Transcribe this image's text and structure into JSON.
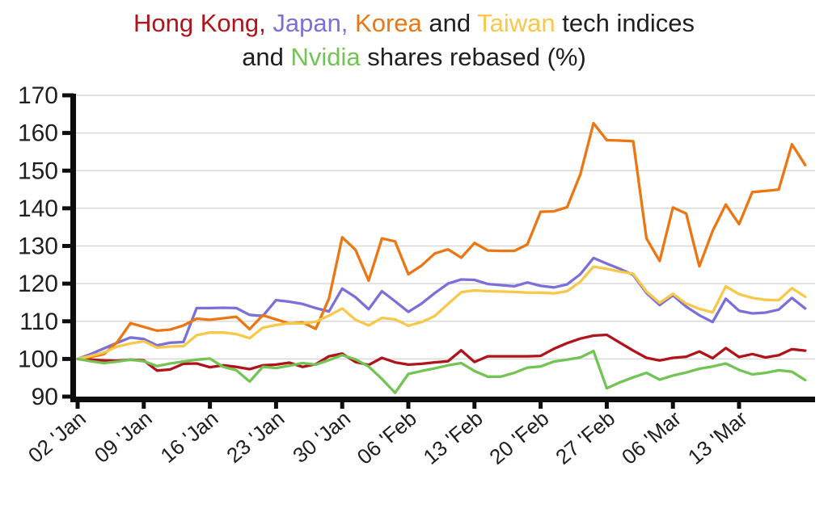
{
  "title": {
    "line1_segments": [
      {
        "text": "Hong Kong,",
        "color": "#b0131a"
      },
      {
        "text": " ",
        "color": "#1f1f1f"
      },
      {
        "text": "Japan,",
        "color": "#7b6fd8"
      },
      {
        "text": " ",
        "color": "#1f1f1f"
      },
      {
        "text": "Korea",
        "color": "#ec7612"
      },
      {
        "text": " and ",
        "color": "#1f1f1f"
      },
      {
        "text": "Taiwan",
        "color": "#f8c84b"
      },
      {
        "text": " tech indices",
        "color": "#1f1f1f"
      }
    ],
    "line2_segments": [
      {
        "text": "and ",
        "color": "#1f1f1f"
      },
      {
        "text": "Nvidia",
        "color": "#74c355"
      },
      {
        "text": " shares rebased (%)",
        "color": "#1f1f1f"
      }
    ]
  },
  "chart_data": {
    "type": "line",
    "title": "Hong Kong, Japan, Korea and Taiwan tech indices and Nvidia shares rebased (%)",
    "xlabel": "",
    "ylabel": "",
    "ylim": [
      90,
      170
    ],
    "y_ticks": [
      90,
      100,
      110,
      120,
      130,
      140,
      150,
      160,
      170
    ],
    "grid": "horizontal",
    "legend_position": "none (colors in title)",
    "x_tick_labels": [
      "02 'Jan",
      "09 'Jan",
      "16 'Jan",
      "23 'Jan",
      "30 'Jan",
      "06 'Feb",
      "13 'Feb",
      "20 'Feb",
      "27 'Feb",
      "06 'Mar",
      "13 'Mar"
    ],
    "x_tick_indices": [
      0,
      5,
      10,
      15,
      20,
      25,
      30,
      35,
      40,
      45,
      50
    ],
    "points_per_series": 56,
    "x_unit": "trading days",
    "series": [
      {
        "name": "Hong Kong",
        "color": "#b0131a",
        "values": [
          100,
          99.8,
          99.6,
          99.5,
          99.8,
          99.6,
          96.9,
          97.2,
          98.7,
          98.8,
          97.8,
          98.3,
          97.9,
          97.3,
          98.3,
          98.5,
          99.0,
          97.9,
          98.6,
          100.7,
          101.4,
          99.2,
          98.4,
          100.3,
          99.1,
          98.5,
          98.7,
          99.1,
          99.4,
          102.3,
          99.2,
          100.7,
          100.7,
          100.7,
          100.7,
          100.8,
          102.7,
          104.2,
          105.4,
          106.2,
          106.4,
          104.3,
          102.2,
          100.3,
          99.6,
          100.3,
          100.6,
          102.0,
          100.2,
          102.9,
          100.5,
          101.3,
          100.4,
          101.0,
          102.6,
          102.2
        ]
      },
      {
        "name": "Japan",
        "color": "#7b6fd8",
        "values": [
          100,
          101.3,
          102.8,
          104.3,
          105.7,
          105.3,
          103.6,
          104.3,
          104.5,
          113.5,
          113.5,
          113.6,
          113.5,
          111.7,
          111.4,
          115.6,
          115.2,
          114.6,
          113.5,
          112.6,
          118.7,
          116.4,
          113.2,
          118.0,
          115.3,
          112.5,
          114.7,
          117.5,
          120.0,
          121.1,
          121.0,
          119.9,
          119.6,
          119.3,
          120.3,
          119.4,
          119.0,
          119.8,
          122.5,
          126.8,
          125.3,
          123.9,
          122.3,
          117.5,
          114.3,
          116.9,
          113.9,
          111.6,
          109.8,
          116.0,
          112.8,
          112.1,
          112.3,
          113.1,
          116.2,
          113.4
        ]
      },
      {
        "name": "Korea",
        "color": "#ec7612",
        "values": [
          100,
          100.5,
          101.3,
          104.5,
          109.5,
          108.5,
          107.5,
          107.8,
          108.9,
          110.7,
          110.4,
          110.8,
          111.2,
          107.9,
          111.6,
          110.5,
          109.4,
          109.7,
          108.0,
          116.0,
          132.3,
          129.0,
          120.8,
          132.0,
          131.2,
          122.5,
          124.8,
          128.0,
          129.1,
          126.9,
          130.8,
          128.8,
          128.7,
          128.7,
          130.4,
          139.1,
          139.2,
          140.3,
          149.0,
          162.6,
          158.1,
          158.0,
          157.8,
          132.0,
          126.0,
          140.2,
          138.6,
          124.6,
          134.0,
          141.0,
          135.8,
          144.3,
          144.6,
          145.0,
          157.0,
          151.5
        ]
      },
      {
        "name": "Taiwan",
        "color": "#f8c84b",
        "values": [
          100,
          100.8,
          101.7,
          103.3,
          104.1,
          104.7,
          103.0,
          103.3,
          103.4,
          106.3,
          107.0,
          107.0,
          106.6,
          105.5,
          108.3,
          109.0,
          109.5,
          109.4,
          109.9,
          111.5,
          113.4,
          110.4,
          108.9,
          110.9,
          110.5,
          108.8,
          109.8,
          111.4,
          114.6,
          117.7,
          118.2,
          118.0,
          117.9,
          117.8,
          117.6,
          117.6,
          117.4,
          118.0,
          120.5,
          124.5,
          123.9,
          123.2,
          122.6,
          117.9,
          114.9,
          117.3,
          114.7,
          113.3,
          112.4,
          119.3,
          117.2,
          116.2,
          115.7,
          115.6,
          118.8,
          116.5
        ]
      },
      {
        "name": "Nvidia",
        "color": "#74c355",
        "values": [
          100,
          99.4,
          98.9,
          99.3,
          99.8,
          99.4,
          98.1,
          98.8,
          99.3,
          99.8,
          100.1,
          97.9,
          97.0,
          94.0,
          97.9,
          97.6,
          98.2,
          98.9,
          98.5,
          99.7,
          101.0,
          99.9,
          98.0,
          94.7,
          91.0,
          96.0,
          96.8,
          97.5,
          98.3,
          98.9,
          96.8,
          95.3,
          95.3,
          96.3,
          97.7,
          98.0,
          99.3,
          99.8,
          100.4,
          102.1,
          92.2,
          93.8,
          95.1,
          96.3,
          94.5,
          95.6,
          96.4,
          97.4,
          98.0,
          98.8,
          97.1,
          95.9,
          96.3,
          97.0,
          96.6,
          94.4
        ]
      }
    ]
  }
}
